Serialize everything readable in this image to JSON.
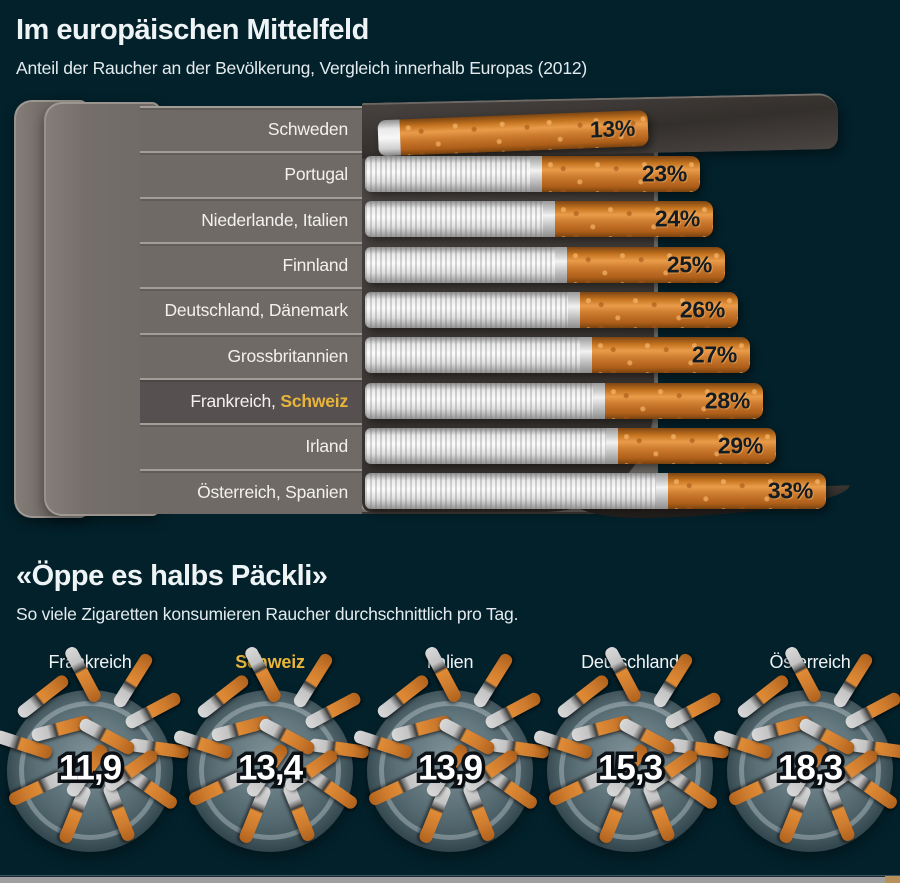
{
  "colors": {
    "background": "#03212b",
    "accent_gold": "#e7b43c",
    "filter_orange": "#cd7b2e",
    "pack_grey": "#6f6a66",
    "highlight_row_grey": "#565150",
    "text_white": "#eef3f5",
    "value_text_dark": "#131c23"
  },
  "chart_data": [
    {
      "type": "bar",
      "orientation": "horizontal",
      "title": "Im europäischen Mittelfeld",
      "subtitle": "Anteil der Raucher an der Bevölkerung, Vergleich innerhalb Europas (2012)",
      "unit": "% der Bevölkerung",
      "year": 2012,
      "highlight": "Schweiz",
      "categories": [
        "Schweden",
        "Portugal",
        "Niederlande, Italien",
        "Finnland",
        "Deutschland, Dänemark",
        "Grossbritannien",
        "Frankreich, Schweiz",
        "Irland",
        "Österreich, Spanien"
      ],
      "values": [
        13,
        23,
        24,
        25,
        26,
        27,
        28,
        29,
        33
      ],
      "value_labels": [
        "13%",
        "23%",
        "24%",
        "25%",
        "26%",
        "27%",
        "28%",
        "29%",
        "33%"
      ],
      "rows": [
        {
          "label": "Schweden",
          "value": 13,
          "value_label": "13%"
        },
        {
          "label": "Portugal",
          "value": 23,
          "value_label": "23%"
        },
        {
          "label": "Niederlande, Italien",
          "value": 24,
          "value_label": "24%"
        },
        {
          "label": "Finnland",
          "value": 25,
          "value_label": "25%"
        },
        {
          "label": "Deutschland, Dänemark",
          "value": 26,
          "value_label": "26%"
        },
        {
          "label": "Grossbritannien",
          "value": 27,
          "value_label": "27%"
        },
        {
          "label": "Frankreich, ",
          "highlight_label": "Schweiz",
          "value": 28,
          "value_label": "28%",
          "row_highlight": true
        },
        {
          "label": "Irland",
          "value": 29,
          "value_label": "29%"
        },
        {
          "label": "Österreich, Spanien",
          "value": 33,
          "value_label": "33%"
        }
      ]
    },
    {
      "type": "pictogram",
      "title": "«Öppe es halbs Päckli»",
      "subtitle": "So viele Zigaretten konsumieren Raucher durchschnittlich pro Tag.",
      "unit": "Zigaretten pro Tag",
      "highlight": "Schweiz",
      "categories": [
        "Frankreich",
        "Schweiz",
        "Italien",
        "Deutschland",
        "Österreich"
      ],
      "values": [
        11.9,
        13.4,
        13.9,
        15.3,
        18.3
      ],
      "value_labels": [
        "11,9",
        "13,4",
        "13,9",
        "15,3",
        "18,3"
      ],
      "items": [
        {
          "label": "Frankreich",
          "value": 11.9,
          "value_label": "11,9"
        },
        {
          "label": "Schweiz",
          "value": 13.4,
          "value_label": "13,4",
          "highlight": true
        },
        {
          "label": "Italien",
          "value": 13.9,
          "value_label": "13,9"
        },
        {
          "label": "Deutschland",
          "value": 15.3,
          "value_label": "15,3"
        },
        {
          "label": "Österreich",
          "value": 18.3,
          "value_label": "18,3"
        }
      ]
    }
  ]
}
